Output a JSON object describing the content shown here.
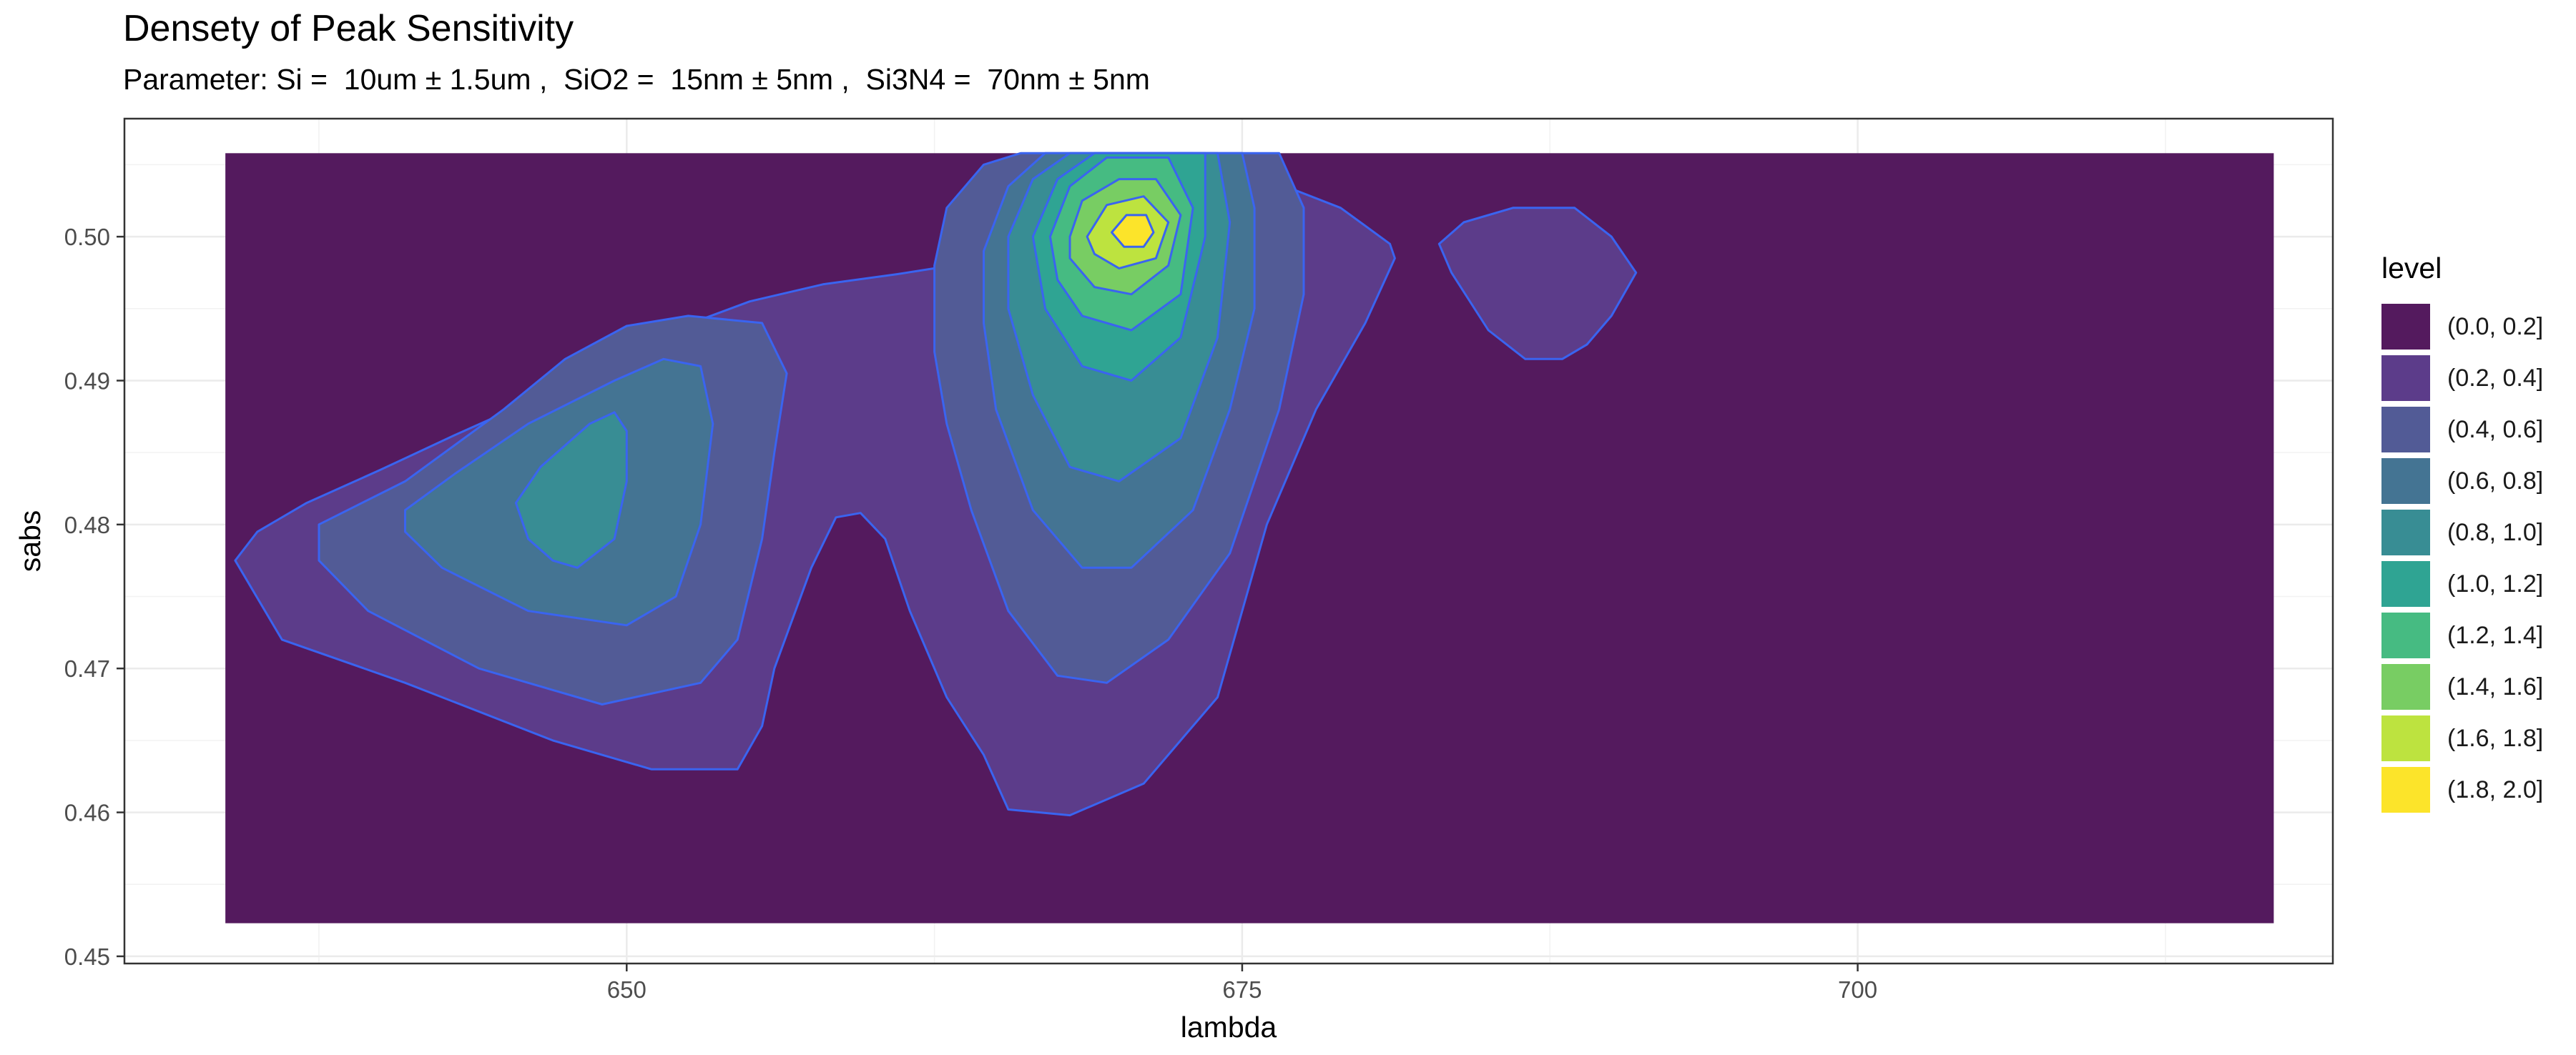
{
  "chart_data": {
    "type": "contour",
    "title": "Densety of Peak Sensitivity",
    "subtitle": "Parameter: Si =  10um ± 1.5um ,  SiO2 =  15nm ± 5nm ,  Si3N4 =  70nm ± 5nm",
    "xlabel": "lambda",
    "ylabel": "sabs",
    "xlim": [
      629.6,
      719.3
    ],
    "ylim": [
      0.4495,
      0.5082
    ],
    "x_ticks": [
      650,
      675,
      700
    ],
    "y_ticks": [
      0.45,
      0.46,
      0.47,
      0.48,
      0.49,
      0.5
    ],
    "y_tick_labels": [
      "0.45",
      "0.46",
      "0.47",
      "0.48",
      "0.49",
      "0.50"
    ],
    "data_extent": {
      "x": [
        633.7,
        716.9
      ],
      "y": [
        0.4523,
        0.5058
      ]
    },
    "grid": true,
    "legend": {
      "title": "level",
      "position": "right",
      "entries": [
        {
          "label": "(0.0, 0.2]",
          "color": "#541a5e"
        },
        {
          "label": "(0.2, 0.4]",
          "color": "#5c3c8a"
        },
        {
          "label": "(0.4, 0.6]",
          "color": "#525b96"
        },
        {
          "label": "(0.6, 0.8]",
          "color": "#447493"
        },
        {
          "label": "(0.8, 1.0]",
          "color": "#388d94"
        },
        {
          "label": "(1.0, 1.2]",
          "color": "#2fa493"
        },
        {
          "label": "(1.2, 1.4]",
          "color": "#46bb82"
        },
        {
          "label": "(1.4, 1.6]",
          "color": "#78cd63"
        },
        {
          "label": "(1.6, 1.8]",
          "color": "#bde33f"
        },
        {
          "label": "(1.8, 2.0]",
          "color": "#fce42a"
        }
      ]
    },
    "contour_line_color": "#3a64f0",
    "bands": [
      {
        "level": "(0.2, 0.4]",
        "points": [
          [
            634.1,
            0.4775
          ],
          [
            635.0,
            0.4795
          ],
          [
            637.0,
            0.4815
          ],
          [
            640.0,
            0.4838
          ],
          [
            643.0,
            0.4862
          ],
          [
            646.0,
            0.4885
          ],
          [
            649.0,
            0.491
          ],
          [
            652.0,
            0.4936
          ],
          [
            655.0,
            0.4955
          ],
          [
            658.0,
            0.4967
          ],
          [
            661.0,
            0.4974
          ],
          [
            662.5,
            0.4978
          ],
          [
            665.0,
            0.5
          ],
          [
            667.0,
            0.503
          ],
          [
            669.0,
            0.5058
          ],
          [
            673.0,
            0.5058
          ],
          [
            676.0,
            0.504
          ],
          [
            679.0,
            0.502
          ],
          [
            681.0,
            0.4995
          ],
          [
            681.2,
            0.4985
          ],
          [
            680.0,
            0.494
          ],
          [
            678.0,
            0.488
          ],
          [
            676.0,
            0.48
          ],
          [
            674.0,
            0.468
          ],
          [
            671.0,
            0.462
          ],
          [
            668.0,
            0.4598
          ],
          [
            665.5,
            0.4602
          ],
          [
            664.5,
            0.464
          ],
          [
            663.0,
            0.468
          ],
          [
            661.5,
            0.474
          ],
          [
            660.5,
            0.479
          ],
          [
            659.5,
            0.4808
          ],
          [
            658.5,
            0.4805
          ],
          [
            657.5,
            0.477
          ],
          [
            656.0,
            0.47
          ],
          [
            655.5,
            0.466
          ],
          [
            654.5,
            0.463
          ],
          [
            651.0,
            0.463
          ],
          [
            647.0,
            0.465
          ],
          [
            641.0,
            0.469
          ],
          [
            636.0,
            0.472
          ],
          [
            634.1,
            0.4775
          ]
        ]
      },
      {
        "level": "(0.2, 0.4]",
        "points": [
          [
            683.0,
            0.4995
          ],
          [
            684.0,
            0.501
          ],
          [
            686.0,
            0.502
          ],
          [
            688.5,
            0.502
          ],
          [
            690.0,
            0.5
          ],
          [
            691.0,
            0.4975
          ],
          [
            690.0,
            0.4945
          ],
          [
            689.0,
            0.4925
          ],
          [
            688.0,
            0.4915
          ],
          [
            686.5,
            0.4915
          ],
          [
            685.0,
            0.4935
          ],
          [
            683.5,
            0.4975
          ],
          [
            683.0,
            0.4995
          ]
        ]
      },
      {
        "level": "(0.4, 0.6]",
        "points": [
          [
            637.5,
            0.48
          ],
          [
            641.0,
            0.483
          ],
          [
            645.0,
            0.488
          ],
          [
            647.5,
            0.4915
          ],
          [
            650.0,
            0.4938
          ],
          [
            652.5,
            0.4945
          ],
          [
            655.5,
            0.494
          ],
          [
            656.5,
            0.4905
          ],
          [
            656.0,
            0.485
          ],
          [
            655.5,
            0.479
          ],
          [
            654.5,
            0.472
          ],
          [
            653.0,
            0.469
          ],
          [
            649.0,
            0.4675
          ],
          [
            644.0,
            0.47
          ],
          [
            639.5,
            0.474
          ],
          [
            637.5,
            0.4775
          ],
          [
            637.5,
            0.48
          ]
        ]
      },
      {
        "level": "(0.4, 0.6]",
        "points": [
          [
            662.5,
            0.498
          ],
          [
            663.0,
            0.502
          ],
          [
            664.5,
            0.505
          ],
          [
            666.0,
            0.5058
          ],
          [
            676.5,
            0.5058
          ],
          [
            677.5,
            0.502
          ],
          [
            677.5,
            0.496
          ],
          [
            676.5,
            0.488
          ],
          [
            674.5,
            0.478
          ],
          [
            672.0,
            0.472
          ],
          [
            669.5,
            0.469
          ],
          [
            667.5,
            0.4695
          ],
          [
            665.5,
            0.474
          ],
          [
            664.0,
            0.481
          ],
          [
            663.0,
            0.487
          ],
          [
            662.5,
            0.492
          ],
          [
            662.5,
            0.498
          ]
        ]
      },
      {
        "level": "(0.6, 0.8]",
        "points": [
          [
            641.0,
            0.481
          ],
          [
            643.0,
            0.4835
          ],
          [
            646.0,
            0.487
          ],
          [
            649.5,
            0.49
          ],
          [
            651.5,
            0.4915
          ],
          [
            653.0,
            0.491
          ],
          [
            653.5,
            0.487
          ],
          [
            653.0,
            0.48
          ],
          [
            652.0,
            0.475
          ],
          [
            650.0,
            0.473
          ],
          [
            646.0,
            0.474
          ],
          [
            642.5,
            0.477
          ],
          [
            641.0,
            0.4795
          ],
          [
            641.0,
            0.481
          ]
        ]
      },
      {
        "level": "(0.6, 0.8]",
        "points": [
          [
            664.5,
            0.499
          ],
          [
            665.5,
            0.5035
          ],
          [
            667.0,
            0.5058
          ],
          [
            675.0,
            0.5058
          ],
          [
            675.5,
            0.502
          ],
          [
            675.5,
            0.495
          ],
          [
            674.5,
            0.488
          ],
          [
            673.0,
            0.481
          ],
          [
            670.5,
            0.477
          ],
          [
            668.5,
            0.477
          ],
          [
            666.5,
            0.481
          ],
          [
            665.0,
            0.488
          ],
          [
            664.5,
            0.494
          ],
          [
            664.5,
            0.499
          ]
        ]
      },
      {
        "level": "(0.8, 1.0]",
        "points": [
          [
            645.5,
            0.4815
          ],
          [
            646.5,
            0.484
          ],
          [
            648.5,
            0.487
          ],
          [
            649.5,
            0.4878
          ],
          [
            650.0,
            0.4865
          ],
          [
            650.0,
            0.483
          ],
          [
            649.5,
            0.479
          ],
          [
            648.0,
            0.477
          ],
          [
            647.0,
            0.4775
          ],
          [
            646.0,
            0.479
          ],
          [
            645.5,
            0.4815
          ]
        ]
      },
      {
        "level": "(0.8, 1.0]",
        "points": [
          [
            665.5,
            0.5
          ],
          [
            666.5,
            0.504
          ],
          [
            668.0,
            0.5058
          ],
          [
            674.0,
            0.5058
          ],
          [
            674.5,
            0.501
          ],
          [
            674.0,
            0.493
          ],
          [
            672.5,
            0.486
          ],
          [
            670.0,
            0.483
          ],
          [
            668.0,
            0.484
          ],
          [
            666.5,
            0.489
          ],
          [
            665.5,
            0.495
          ],
          [
            665.5,
            0.5
          ]
        ]
      },
      {
        "level": "(1.0, 1.2]",
        "points": [
          [
            666.5,
            0.5
          ],
          [
            667.5,
            0.504
          ],
          [
            669.0,
            0.5058
          ],
          [
            673.5,
            0.5058
          ],
          [
            673.5,
            0.5
          ],
          [
            672.5,
            0.493
          ],
          [
            670.5,
            0.49
          ],
          [
            668.5,
            0.491
          ],
          [
            667.0,
            0.495
          ],
          [
            666.5,
            0.5
          ]
        ]
      },
      {
        "level": "(1.2, 1.4]",
        "points": [
          [
            667.2,
            0.5
          ],
          [
            668.0,
            0.5035
          ],
          [
            669.5,
            0.5055
          ],
          [
            672.0,
            0.5055
          ],
          [
            673.0,
            0.502
          ],
          [
            672.5,
            0.496
          ],
          [
            670.5,
            0.4935
          ],
          [
            668.5,
            0.4945
          ],
          [
            667.5,
            0.497
          ],
          [
            667.2,
            0.5
          ]
        ]
      },
      {
        "level": "(1.4, 1.6]",
        "points": [
          [
            668.0,
            0.5
          ],
          [
            668.5,
            0.5025
          ],
          [
            670.0,
            0.504
          ],
          [
            671.5,
            0.504
          ],
          [
            672.5,
            0.5015
          ],
          [
            672.0,
            0.498
          ],
          [
            670.5,
            0.496
          ],
          [
            669.0,
            0.4965
          ],
          [
            668.0,
            0.4985
          ],
          [
            668.0,
            0.5
          ]
        ]
      },
      {
        "level": "(1.6, 1.8]",
        "points": [
          [
            668.7,
            0.5
          ],
          [
            669.5,
            0.5022
          ],
          [
            671.0,
            0.5028
          ],
          [
            672.0,
            0.501
          ],
          [
            671.5,
            0.4985
          ],
          [
            670.0,
            0.4978
          ],
          [
            669.0,
            0.4988
          ],
          [
            668.7,
            0.5
          ]
        ]
      },
      {
        "level": "(1.8, 2.0]",
        "points": [
          [
            669.7,
            0.5003
          ],
          [
            670.3,
            0.5015
          ],
          [
            671.1,
            0.5015
          ],
          [
            671.4,
            0.5003
          ],
          [
            671.0,
            0.4993
          ],
          [
            670.2,
            0.4993
          ],
          [
            669.7,
            0.5003
          ]
        ]
      }
    ]
  }
}
